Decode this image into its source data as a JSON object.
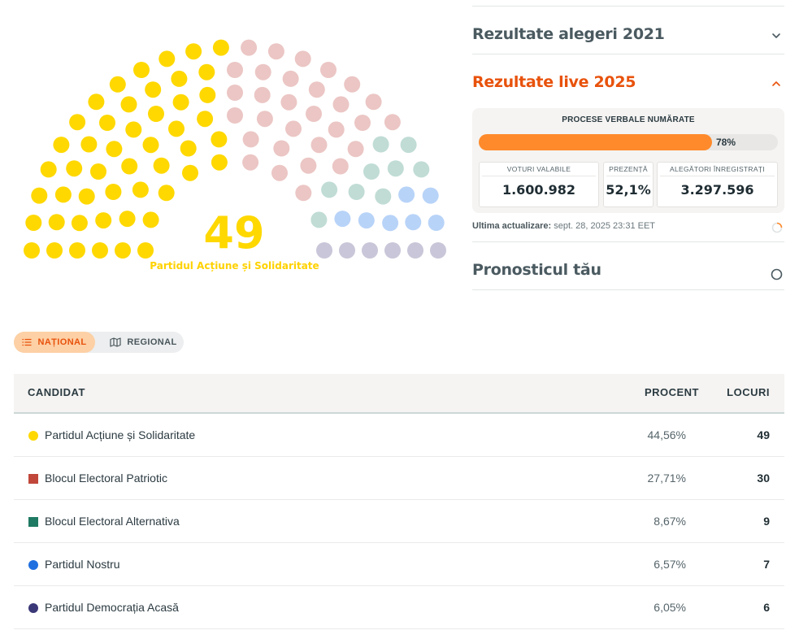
{
  "parliament": {
    "highlight_seats": "49",
    "highlight_party": "Partidul Acțiune și Solidaritate",
    "groups": [
      {
        "seats": 49,
        "color": "#ffd800"
      },
      {
        "seats": 30,
        "color": "#ebc6c4"
      },
      {
        "seats": 9,
        "color": "#c0dcd5"
      },
      {
        "seats": 7,
        "color": "#b8d3f8"
      },
      {
        "seats": 6,
        "color": "#c8c6d8"
      }
    ]
  },
  "panel": {
    "section_2021": "Rezultate alegeri 2021",
    "section_live": "Rezultate live 2025",
    "section_forecast": "Pronosticul tău",
    "counted_title": "PROCESE VERBALE NUMĂRATE",
    "counted_percent": 78,
    "counted_percent_label": "78%",
    "stats": [
      {
        "label": "VOTURI VALABILE",
        "value": "1.600.982"
      },
      {
        "label": "PREZENȚĂ",
        "value": "52,1%"
      },
      {
        "label": "ALEGĂTORI ÎNREGISTRAȚI",
        "value": "3.297.596"
      }
    ],
    "updated_label": "Ultima actualizare:",
    "updated_value": "sept. 28, 2025 23:31 EET"
  },
  "toggle": {
    "national": "NAȚIONAL",
    "regional": "REGIONAL"
  },
  "table": {
    "headers": {
      "candidate": "CANDIDAT",
      "percent": "PROCENT",
      "seats": "LOCURI"
    },
    "rows": [
      {
        "name": "Partidul Acțiune și Solidaritate",
        "percent": "44,56%",
        "seats": "49",
        "color": "#ffd800",
        "shape": "circle"
      },
      {
        "name": "Blocul Electoral Patriotic",
        "percent": "27,71%",
        "seats": "30",
        "color": "#c0473a",
        "shape": "square"
      },
      {
        "name": "Blocul Electoral Alternativa",
        "percent": "8,67%",
        "seats": "9",
        "color": "#1f7a63",
        "shape": "square"
      },
      {
        "name": "Partidul Nostru",
        "percent": "6,57%",
        "seats": "7",
        "color": "#1f6fe0",
        "shape": "circle"
      },
      {
        "name": "Partidul Democrația Acasă",
        "percent": "6,05%",
        "seats": "6",
        "color": "#3b3878",
        "shape": "circle"
      }
    ]
  }
}
